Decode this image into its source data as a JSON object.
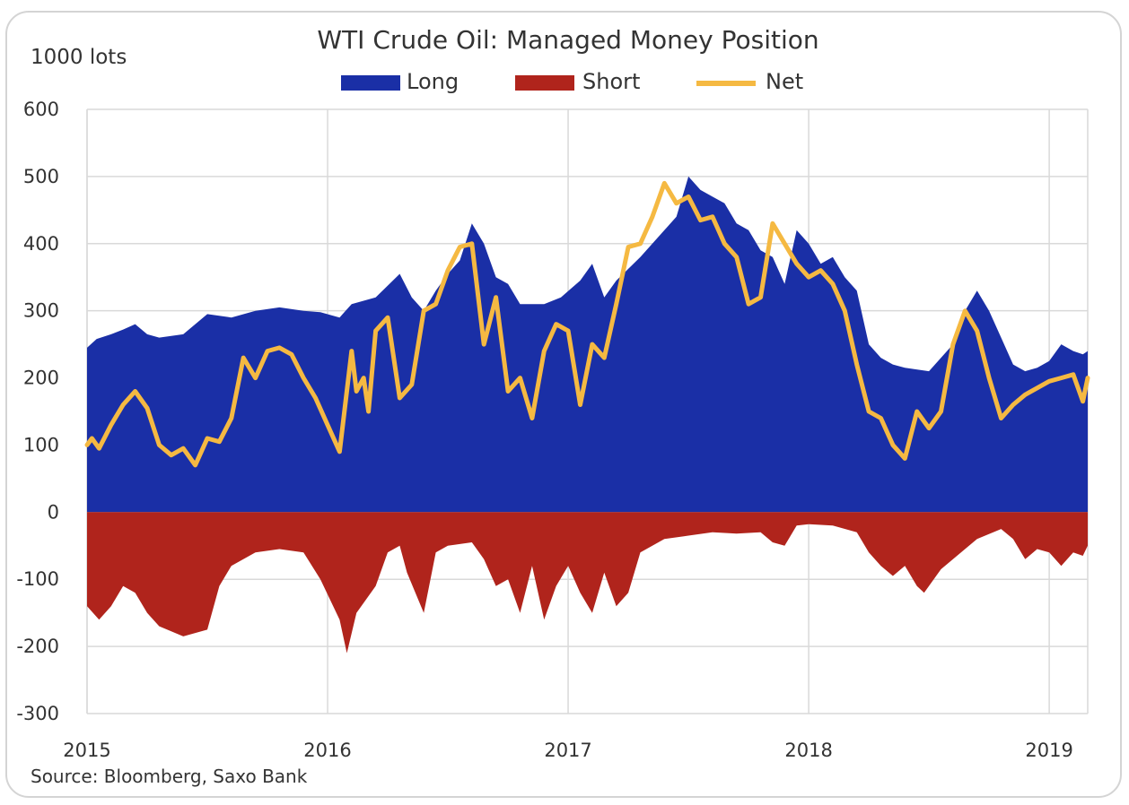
{
  "chart_data": {
    "type": "area",
    "title": "WTI Crude Oil: Managed Money Position",
    "ylabel": "1000 lots",
    "xlabel": "",
    "source": "Source: Bloomberg, Saxo Bank",
    "ylim": [
      -300,
      600
    ],
    "yticks": [
      600,
      500,
      400,
      300,
      200,
      100,
      0,
      -100,
      -200,
      -300
    ],
    "xlim": [
      2015,
      2019.16
    ],
    "xticks": [
      "2015",
      "2016",
      "2017",
      "2018",
      "2019"
    ],
    "grid": true,
    "legend_position": "top-center",
    "colors": {
      "long": "#1a2fa6",
      "short": "#b0241c",
      "net": "#f5b942",
      "grid": "#d9d9d9"
    },
    "legend": [
      {
        "name": "Long",
        "style": "area",
        "color": "#1a2fa6"
      },
      {
        "name": "Short",
        "style": "area",
        "color": "#b0241c"
      },
      {
        "name": "Net",
        "style": "line",
        "color": "#f5b942"
      }
    ],
    "series": [
      {
        "name": "Long",
        "points": [
          [
            2015.0,
            245
          ],
          [
            2015.04,
            258
          ],
          [
            2015.1,
            265
          ],
          [
            2015.15,
            272
          ],
          [
            2015.2,
            280
          ],
          [
            2015.25,
            265
          ],
          [
            2015.3,
            260
          ],
          [
            2015.4,
            265
          ],
          [
            2015.5,
            295
          ],
          [
            2015.6,
            290
          ],
          [
            2015.7,
            300
          ],
          [
            2015.8,
            305
          ],
          [
            2015.9,
            300
          ],
          [
            2015.97,
            298
          ],
          [
            2016.05,
            290
          ],
          [
            2016.1,
            310
          ],
          [
            2016.2,
            320
          ],
          [
            2016.3,
            355
          ],
          [
            2016.35,
            320
          ],
          [
            2016.4,
            300
          ],
          [
            2016.45,
            330
          ],
          [
            2016.5,
            355
          ],
          [
            2016.55,
            375
          ],
          [
            2016.6,
            430
          ],
          [
            2016.65,
            400
          ],
          [
            2016.7,
            350
          ],
          [
            2016.75,
            340
          ],
          [
            2016.8,
            310
          ],
          [
            2016.9,
            310
          ],
          [
            2016.97,
            320
          ],
          [
            2017.05,
            345
          ],
          [
            2017.1,
            370
          ],
          [
            2017.15,
            320
          ],
          [
            2017.2,
            345
          ],
          [
            2017.3,
            380
          ],
          [
            2017.4,
            420
          ],
          [
            2017.45,
            440
          ],
          [
            2017.5,
            500
          ],
          [
            2017.55,
            480
          ],
          [
            2017.6,
            470
          ],
          [
            2017.65,
            460
          ],
          [
            2017.7,
            430
          ],
          [
            2017.75,
            420
          ],
          [
            2017.8,
            390
          ],
          [
            2017.85,
            380
          ],
          [
            2017.9,
            340
          ],
          [
            2017.95,
            420
          ],
          [
            2018.0,
            400
          ],
          [
            2018.05,
            370
          ],
          [
            2018.1,
            380
          ],
          [
            2018.15,
            350
          ],
          [
            2018.2,
            330
          ],
          [
            2018.25,
            250
          ],
          [
            2018.3,
            230
          ],
          [
            2018.35,
            220
          ],
          [
            2018.4,
            215
          ],
          [
            2018.5,
            210
          ],
          [
            2018.55,
            230
          ],
          [
            2018.6,
            250
          ],
          [
            2018.65,
            300
          ],
          [
            2018.7,
            330
          ],
          [
            2018.75,
            300
          ],
          [
            2018.8,
            260
          ],
          [
            2018.85,
            220
          ],
          [
            2018.9,
            210
          ],
          [
            2018.95,
            215
          ],
          [
            2019.0,
            225
          ],
          [
            2019.05,
            250
          ],
          [
            2019.1,
            240
          ],
          [
            2019.14,
            235
          ],
          [
            2019.16,
            240
          ]
        ]
      },
      {
        "name": "Short",
        "points": [
          [
            2015.0,
            -140
          ],
          [
            2015.05,
            -160
          ],
          [
            2015.1,
            -140
          ],
          [
            2015.15,
            -110
          ],
          [
            2015.2,
            -120
          ],
          [
            2015.25,
            -150
          ],
          [
            2015.3,
            -170
          ],
          [
            2015.4,
            -185
          ],
          [
            2015.5,
            -175
          ],
          [
            2015.55,
            -110
          ],
          [
            2015.6,
            -80
          ],
          [
            2015.7,
            -60
          ],
          [
            2015.8,
            -55
          ],
          [
            2015.9,
            -60
          ],
          [
            2015.97,
            -100
          ],
          [
            2016.05,
            -160
          ],
          [
            2016.08,
            -210
          ],
          [
            2016.12,
            -150
          ],
          [
            2016.2,
            -110
          ],
          [
            2016.25,
            -60
          ],
          [
            2016.3,
            -50
          ],
          [
            2016.33,
            -90
          ],
          [
            2016.4,
            -150
          ],
          [
            2016.45,
            -60
          ],
          [
            2016.5,
            -50
          ],
          [
            2016.6,
            -45
          ],
          [
            2016.65,
            -70
          ],
          [
            2016.7,
            -110
          ],
          [
            2016.75,
            -100
          ],
          [
            2016.8,
            -150
          ],
          [
            2016.85,
            -80
          ],
          [
            2016.9,
            -160
          ],
          [
            2016.95,
            -110
          ],
          [
            2017.0,
            -80
          ],
          [
            2017.05,
            -120
          ],
          [
            2017.1,
            -150
          ],
          [
            2017.15,
            -90
          ],
          [
            2017.2,
            -140
          ],
          [
            2017.25,
            -120
          ],
          [
            2017.3,
            -60
          ],
          [
            2017.4,
            -40
          ],
          [
            2017.5,
            -35
          ],
          [
            2017.6,
            -30
          ],
          [
            2017.7,
            -32
          ],
          [
            2017.8,
            -30
          ],
          [
            2017.85,
            -45
          ],
          [
            2017.9,
            -50
          ],
          [
            2017.95,
            -20
          ],
          [
            2018.0,
            -18
          ],
          [
            2018.1,
            -20
          ],
          [
            2018.2,
            -30
          ],
          [
            2018.25,
            -60
          ],
          [
            2018.3,
            -80
          ],
          [
            2018.35,
            -95
          ],
          [
            2018.4,
            -80
          ],
          [
            2018.45,
            -110
          ],
          [
            2018.48,
            -120
          ],
          [
            2018.55,
            -85
          ],
          [
            2018.6,
            -70
          ],
          [
            2018.7,
            -40
          ],
          [
            2018.8,
            -25
          ],
          [
            2018.85,
            -40
          ],
          [
            2018.9,
            -70
          ],
          [
            2018.95,
            -55
          ],
          [
            2019.0,
            -60
          ],
          [
            2019.05,
            -80
          ],
          [
            2019.1,
            -60
          ],
          [
            2019.14,
            -65
          ],
          [
            2019.16,
            -50
          ]
        ]
      },
      {
        "name": "Net",
        "points": [
          [
            2015.0,
            100
          ],
          [
            2015.02,
            110
          ],
          [
            2015.05,
            95
          ],
          [
            2015.1,
            130
          ],
          [
            2015.15,
            160
          ],
          [
            2015.2,
            180
          ],
          [
            2015.25,
            155
          ],
          [
            2015.3,
            100
          ],
          [
            2015.35,
            85
          ],
          [
            2015.4,
            95
          ],
          [
            2015.45,
            70
          ],
          [
            2015.5,
            110
          ],
          [
            2015.55,
            105
          ],
          [
            2015.6,
            140
          ],
          [
            2015.65,
            230
          ],
          [
            2015.7,
            200
          ],
          [
            2015.75,
            240
          ],
          [
            2015.8,
            245
          ],
          [
            2015.85,
            235
          ],
          [
            2015.9,
            200
          ],
          [
            2015.95,
            170
          ],
          [
            2016.0,
            130
          ],
          [
            2016.05,
            90
          ],
          [
            2016.1,
            240
          ],
          [
            2016.12,
            180
          ],
          [
            2016.15,
            200
          ],
          [
            2016.17,
            150
          ],
          [
            2016.2,
            270
          ],
          [
            2016.25,
            290
          ],
          [
            2016.3,
            170
          ],
          [
            2016.35,
            190
          ],
          [
            2016.4,
            300
          ],
          [
            2016.45,
            310
          ],
          [
            2016.5,
            360
          ],
          [
            2016.55,
            395
          ],
          [
            2016.6,
            400
          ],
          [
            2016.65,
            250
          ],
          [
            2016.7,
            320
          ],
          [
            2016.75,
            180
          ],
          [
            2016.8,
            200
          ],
          [
            2016.85,
            140
          ],
          [
            2016.9,
            240
          ],
          [
            2016.95,
            280
          ],
          [
            2017.0,
            270
          ],
          [
            2017.05,
            160
          ],
          [
            2017.1,
            250
          ],
          [
            2017.15,
            230
          ],
          [
            2017.2,
            310
          ],
          [
            2017.25,
            395
          ],
          [
            2017.3,
            400
          ],
          [
            2017.35,
            440
          ],
          [
            2017.4,
            490
          ],
          [
            2017.45,
            460
          ],
          [
            2017.5,
            470
          ],
          [
            2017.55,
            435
          ],
          [
            2017.6,
            440
          ],
          [
            2017.65,
            400
          ],
          [
            2017.7,
            380
          ],
          [
            2017.75,
            310
          ],
          [
            2017.8,
            320
          ],
          [
            2017.85,
            430
          ],
          [
            2017.9,
            400
          ],
          [
            2017.95,
            370
          ],
          [
            2018.0,
            350
          ],
          [
            2018.05,
            360
          ],
          [
            2018.1,
            340
          ],
          [
            2018.15,
            300
          ],
          [
            2018.2,
            220
          ],
          [
            2018.25,
            150
          ],
          [
            2018.3,
            140
          ],
          [
            2018.35,
            100
          ],
          [
            2018.4,
            80
          ],
          [
            2018.45,
            150
          ],
          [
            2018.5,
            125
          ],
          [
            2018.55,
            150
          ],
          [
            2018.6,
            250
          ],
          [
            2018.65,
            300
          ],
          [
            2018.7,
            270
          ],
          [
            2018.75,
            200
          ],
          [
            2018.8,
            140
          ],
          [
            2018.85,
            160
          ],
          [
            2018.9,
            175
          ],
          [
            2018.95,
            185
          ],
          [
            2019.0,
            195
          ],
          [
            2019.05,
            200
          ],
          [
            2019.1,
            205
          ],
          [
            2019.14,
            165
          ],
          [
            2019.16,
            200
          ]
        ]
      }
    ]
  }
}
